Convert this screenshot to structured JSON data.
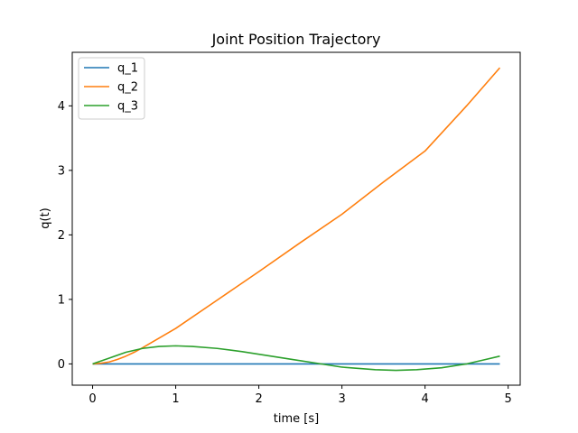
{
  "chart_data": {
    "type": "line",
    "title": "Joint Position Trajectory",
    "xlabel": "time [s]",
    "ylabel": "q(t)",
    "xlim": [
      -0.245,
      5.145
    ],
    "ylim": [
      -0.33,
      4.83
    ],
    "xticks": [
      0,
      1,
      2,
      3,
      4,
      5
    ],
    "yticks": [
      0,
      1,
      2,
      3,
      4
    ],
    "grid": false,
    "legend_position": "top-left",
    "series": [
      {
        "name": "q_1",
        "color": "#1f77b4",
        "x": [
          0,
          0.5,
          1,
          1.5,
          2,
          2.5,
          3,
          3.5,
          4,
          4.5,
          4.9
        ],
        "y": [
          0,
          0,
          0,
          0,
          0,
          0,
          0,
          0,
          0,
          0,
          0
        ]
      },
      {
        "name": "q_2",
        "color": "#ff7f0e",
        "x": [
          0,
          0.1,
          0.2,
          0.3,
          0.4,
          0.5,
          0.6,
          0.8,
          1.0,
          1.5,
          2.0,
          2.5,
          3.0,
          3.5,
          4.0,
          4.5,
          4.9
        ],
        "y": [
          0,
          0.01,
          0.03,
          0.07,
          0.12,
          0.18,
          0.25,
          0.4,
          0.55,
          0.99,
          1.43,
          1.88,
          2.32,
          2.82,
          3.3,
          4.0,
          4.59
        ]
      },
      {
        "name": "q_3",
        "color": "#2ca02c",
        "x": [
          0,
          0.2,
          0.4,
          0.6,
          0.8,
          1.0,
          1.2,
          1.5,
          1.8,
          2.0,
          2.4,
          2.8,
          3.0,
          3.4,
          3.65,
          3.9,
          4.2,
          4.5,
          4.7,
          4.9
        ],
        "y": [
          0,
          0.09,
          0.18,
          0.24,
          0.27,
          0.28,
          0.27,
          0.24,
          0.19,
          0.15,
          0.07,
          -0.01,
          -0.05,
          -0.09,
          -0.1,
          -0.09,
          -0.06,
          0.0,
          0.06,
          0.12
        ]
      }
    ]
  }
}
